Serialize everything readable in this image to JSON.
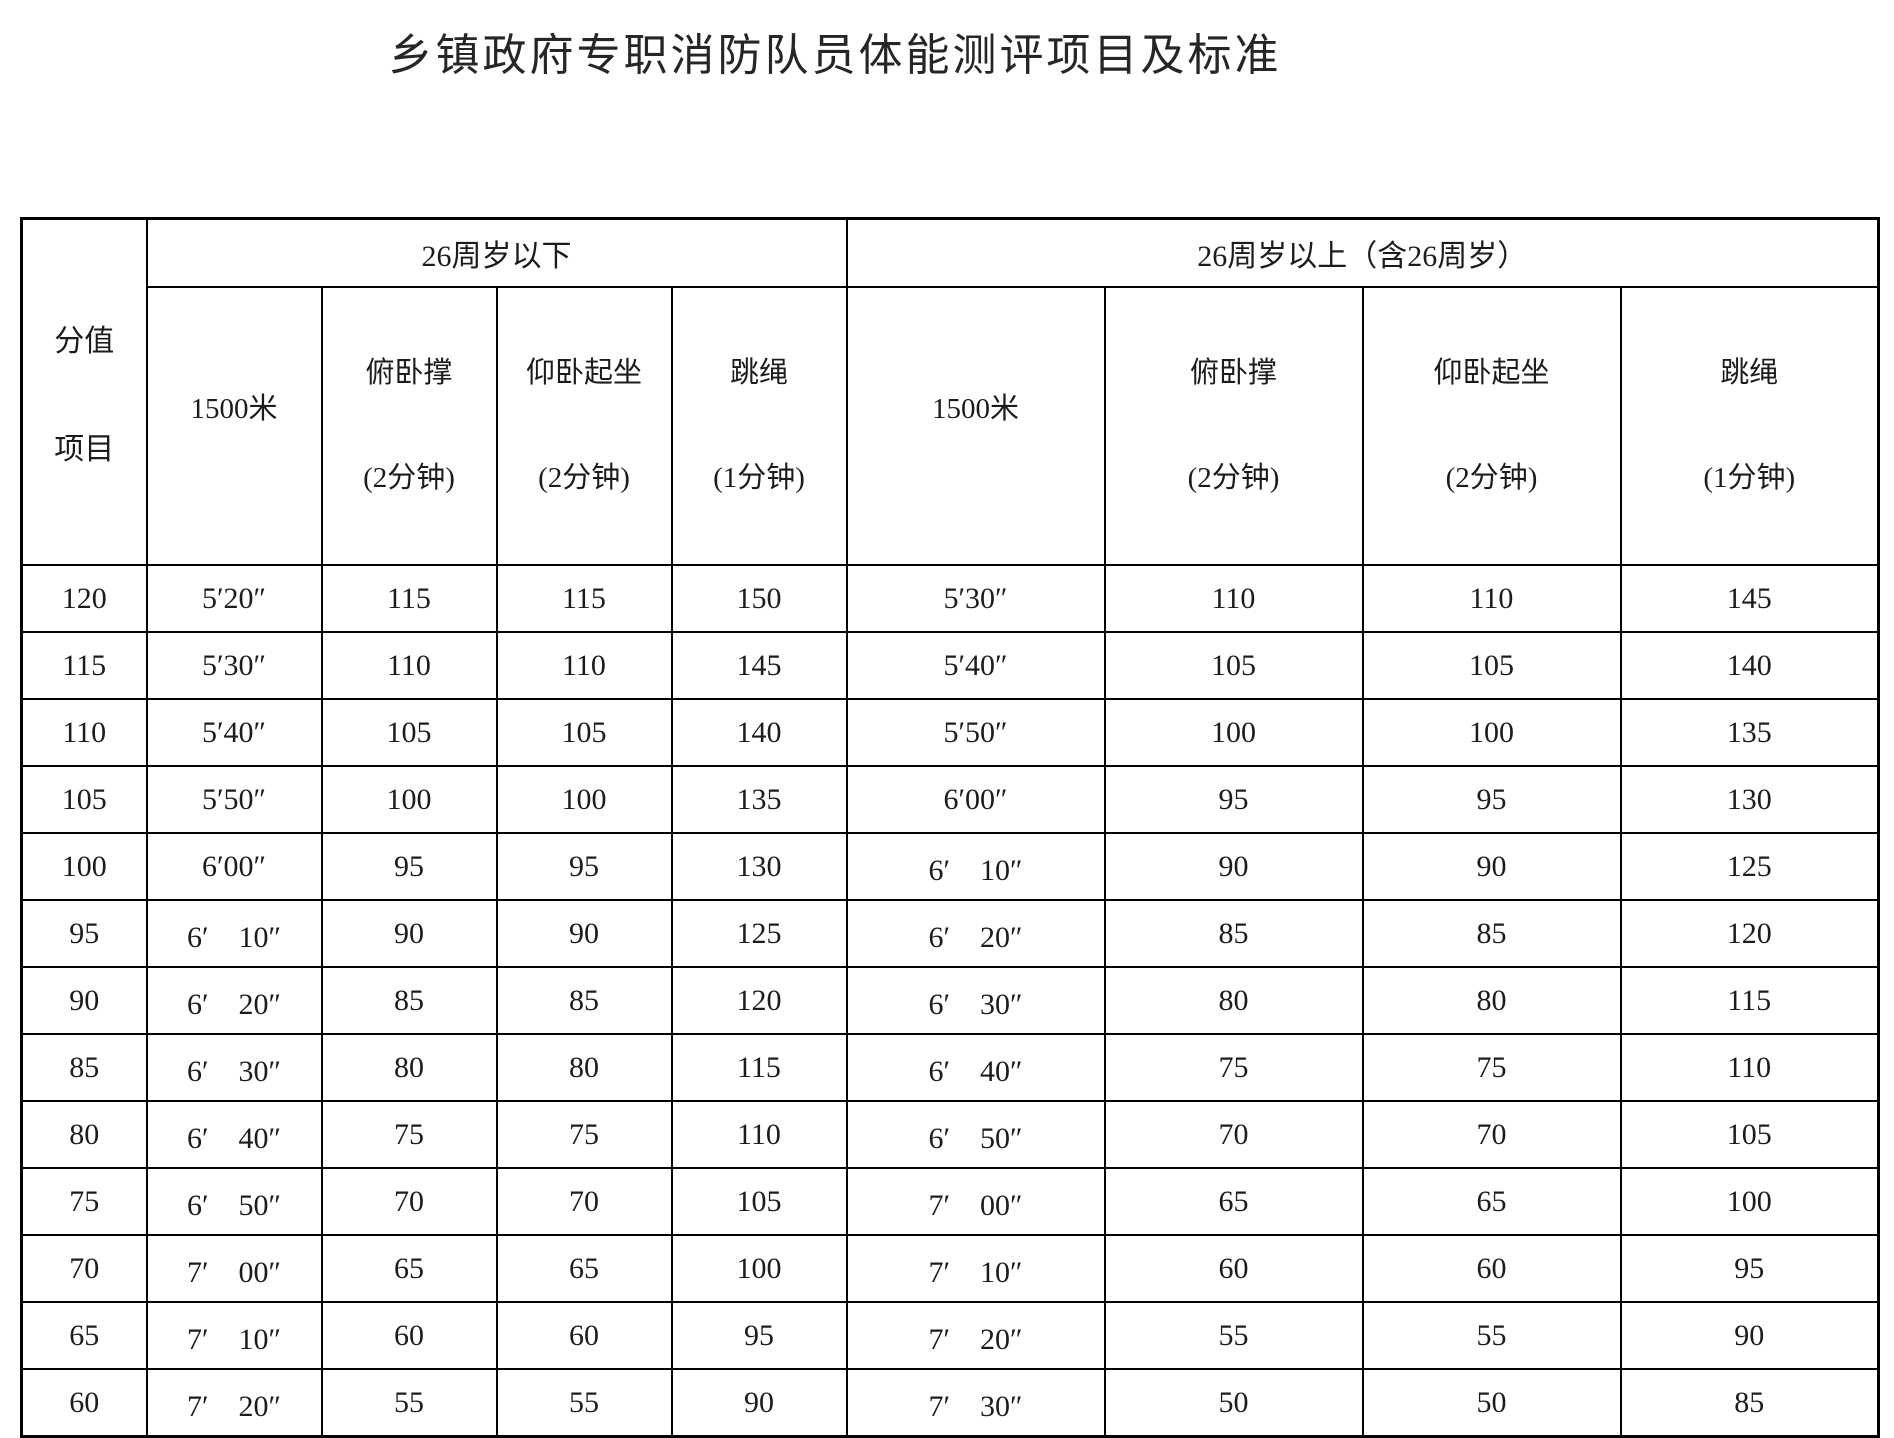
{
  "title": "乡镇政府专职消防队员体能测评项目及标准",
  "table": {
    "corner": {
      "line1": "分值",
      "line2": "项目"
    },
    "groups": [
      {
        "label": "26周岁以下",
        "columns": [
          {
            "name": "1500米",
            "note": ""
          },
          {
            "name": "俯卧撑",
            "note": "(2分钟)"
          },
          {
            "name": "仰卧起坐",
            "note": "(2分钟)"
          },
          {
            "name": "跳绳",
            "note": "(1分钟)"
          }
        ]
      },
      {
        "label": "26周岁以上（含26周岁）",
        "columns": [
          {
            "name": "1500米",
            "note": ""
          },
          {
            "name": "俯卧撑",
            "note": "(2分钟)"
          },
          {
            "name": "仰卧起坐",
            "note": "(2分钟)"
          },
          {
            "name": "跳绳",
            "note": "(1分钟)"
          }
        ]
      }
    ],
    "rows": [
      {
        "score": "120",
        "under26": [
          "5′20″",
          "115",
          "115",
          "150"
        ],
        "over26": [
          "5′30″",
          "110",
          "110",
          "145"
        ]
      },
      {
        "score": "115",
        "under26": [
          "5′30″",
          "110",
          "110",
          "145"
        ],
        "over26": [
          "5′40″",
          "105",
          "105",
          "140"
        ]
      },
      {
        "score": "110",
        "under26": [
          "5′40″",
          "105",
          "105",
          "140"
        ],
        "over26": [
          "5′50″",
          "100",
          "100",
          "135"
        ]
      },
      {
        "score": "105",
        "under26": [
          "5′50″",
          "100",
          "100",
          "135"
        ],
        "over26": [
          "6′00″",
          "95",
          "95",
          "130"
        ]
      },
      {
        "score": "100",
        "under26": [
          "6′00″",
          "95",
          "95",
          "130"
        ],
        "over26": [
          "6′　10″",
          "90",
          "90",
          "125"
        ]
      },
      {
        "score": "95",
        "under26": [
          "6′　10″",
          "90",
          "90",
          "125"
        ],
        "over26": [
          "6′　20″",
          "85",
          "85",
          "120"
        ]
      },
      {
        "score": "90",
        "under26": [
          "6′　20″",
          "85",
          "85",
          "120"
        ],
        "over26": [
          "6′　30″",
          "80",
          "80",
          "115"
        ]
      },
      {
        "score": "85",
        "under26": [
          "6′　30″",
          "80",
          "80",
          "115"
        ],
        "over26": [
          "6′　40″",
          "75",
          "75",
          "110"
        ]
      },
      {
        "score": "80",
        "under26": [
          "6′　40″",
          "75",
          "75",
          "110"
        ],
        "over26": [
          "6′　50″",
          "70",
          "70",
          "105"
        ]
      },
      {
        "score": "75",
        "under26": [
          "6′　50″",
          "70",
          "70",
          "105"
        ],
        "over26": [
          "7′　00″",
          "65",
          "65",
          "100"
        ]
      },
      {
        "score": "70",
        "under26": [
          "7′　00″",
          "65",
          "65",
          "100"
        ],
        "over26": [
          "7′　10″",
          "60",
          "60",
          "95"
        ]
      },
      {
        "score": "65",
        "under26": [
          "7′　10″",
          "60",
          "60",
          "95"
        ],
        "over26": [
          "7′　20″",
          "55",
          "55",
          "90"
        ]
      },
      {
        "score": "60",
        "under26": [
          "7′　20″",
          "55",
          "55",
          "90"
        ],
        "over26": [
          "7′　30″",
          "50",
          "50",
          "85"
        ]
      }
    ]
  }
}
